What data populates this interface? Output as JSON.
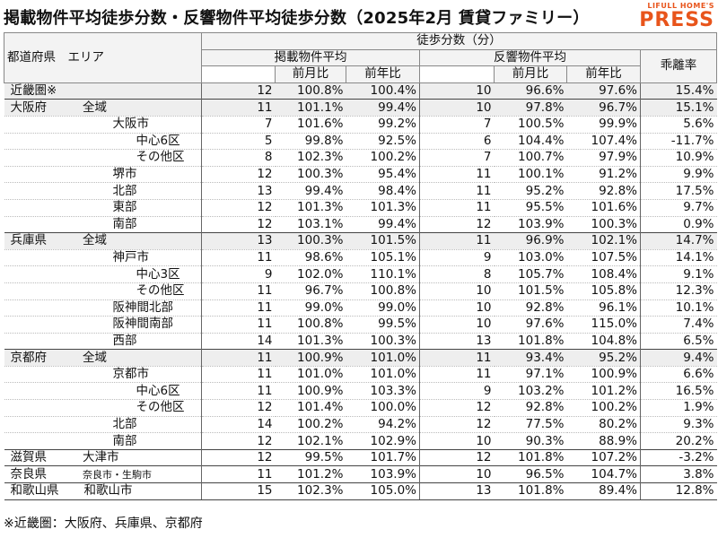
{
  "title": "掲載物件平均徒歩分数・反響物件平均徒歩分数（2025年2月 賃貸ファミリー）",
  "logo": {
    "top": "LIFULL HOME'S",
    "bottom": "PRESS",
    "color": "#e8541b"
  },
  "headers": {
    "region": "都道府県　エリア",
    "walk_minutes": "徒歩分数（分）",
    "listed_avg": "掲載物件平均",
    "response_avg": "反響物件平均",
    "mom": "前月比",
    "yoy": "前年比",
    "divergence": "乖離率"
  },
  "rows": [
    {
      "pref": "近畿圏※",
      "area": "",
      "indent": 0,
      "listed": "12",
      "l_mom": "100.8%",
      "l_yoy": "100.4%",
      "resp": "10",
      "r_mom": "96.6%",
      "r_yoy": "97.6%",
      "div": "15.4%",
      "shade": true,
      "group": true
    },
    {
      "pref": "大阪府",
      "area": "全域",
      "indent": 0,
      "listed": "11",
      "l_mom": "101.1%",
      "l_yoy": "99.4%",
      "resp": "10",
      "r_mom": "97.8%",
      "r_yoy": "96.7%",
      "div": "15.1%",
      "shade": true,
      "group": true
    },
    {
      "pref": "",
      "area": "大阪市",
      "indent": 1,
      "listed": "7",
      "l_mom": "101.6%",
      "l_yoy": "99.2%",
      "resp": "7",
      "r_mom": "100.5%",
      "r_yoy": "99.9%",
      "div": "5.6%"
    },
    {
      "pref": "",
      "area": "中心6区",
      "indent": 2,
      "listed": "5",
      "l_mom": "99.8%",
      "l_yoy": "92.5%",
      "resp": "6",
      "r_mom": "104.4%",
      "r_yoy": "107.4%",
      "div": "-11.7%"
    },
    {
      "pref": "",
      "area": "その他区",
      "indent": 2,
      "listed": "8",
      "l_mom": "102.3%",
      "l_yoy": "100.2%",
      "resp": "7",
      "r_mom": "100.7%",
      "r_yoy": "97.9%",
      "div": "10.9%"
    },
    {
      "pref": "",
      "area": "堺市",
      "indent": 1,
      "listed": "12",
      "l_mom": "100.3%",
      "l_yoy": "95.4%",
      "resp": "11",
      "r_mom": "100.1%",
      "r_yoy": "91.2%",
      "div": "9.9%"
    },
    {
      "pref": "",
      "area": "北部",
      "indent": 1,
      "listed": "13",
      "l_mom": "99.4%",
      "l_yoy": "98.4%",
      "resp": "11",
      "r_mom": "95.2%",
      "r_yoy": "92.8%",
      "div": "17.5%"
    },
    {
      "pref": "",
      "area": "東部",
      "indent": 1,
      "listed": "12",
      "l_mom": "101.3%",
      "l_yoy": "101.3%",
      "resp": "11",
      "r_mom": "95.5%",
      "r_yoy": "101.6%",
      "div": "9.7%"
    },
    {
      "pref": "",
      "area": "南部",
      "indent": 1,
      "listed": "12",
      "l_mom": "103.1%",
      "l_yoy": "99.4%",
      "resp": "12",
      "r_mom": "103.9%",
      "r_yoy": "100.3%",
      "div": "0.9%"
    },
    {
      "pref": "兵庫県",
      "area": "全域",
      "indent": 0,
      "listed": "13",
      "l_mom": "100.3%",
      "l_yoy": "101.5%",
      "resp": "11",
      "r_mom": "96.9%",
      "r_yoy": "102.1%",
      "div": "14.7%",
      "shade": true,
      "group": true
    },
    {
      "pref": "",
      "area": "神戸市",
      "indent": 1,
      "listed": "11",
      "l_mom": "98.6%",
      "l_yoy": "105.1%",
      "resp": "9",
      "r_mom": "103.0%",
      "r_yoy": "107.5%",
      "div": "14.1%"
    },
    {
      "pref": "",
      "area": "中心3区",
      "indent": 2,
      "listed": "9",
      "l_mom": "102.0%",
      "l_yoy": "110.1%",
      "resp": "8",
      "r_mom": "105.7%",
      "r_yoy": "108.4%",
      "div": "9.1%"
    },
    {
      "pref": "",
      "area": "その他区",
      "indent": 2,
      "listed": "11",
      "l_mom": "96.7%",
      "l_yoy": "100.8%",
      "resp": "10",
      "r_mom": "101.5%",
      "r_yoy": "105.8%",
      "div": "12.3%"
    },
    {
      "pref": "",
      "area": "阪神間北部",
      "indent": 1,
      "listed": "11",
      "l_mom": "99.0%",
      "l_yoy": "99.0%",
      "resp": "10",
      "r_mom": "92.8%",
      "r_yoy": "96.1%",
      "div": "10.1%"
    },
    {
      "pref": "",
      "area": "阪神間南部",
      "indent": 1,
      "listed": "11",
      "l_mom": "100.8%",
      "l_yoy": "99.5%",
      "resp": "10",
      "r_mom": "97.6%",
      "r_yoy": "115.0%",
      "div": "7.4%"
    },
    {
      "pref": "",
      "area": "西部",
      "indent": 1,
      "listed": "14",
      "l_mom": "101.3%",
      "l_yoy": "100.3%",
      "resp": "13",
      "r_mom": "101.8%",
      "r_yoy": "104.8%",
      "div": "6.5%"
    },
    {
      "pref": "京都府",
      "area": "全域",
      "indent": 0,
      "listed": "11",
      "l_mom": "100.9%",
      "l_yoy": "101.0%",
      "resp": "11",
      "r_mom": "93.4%",
      "r_yoy": "95.2%",
      "div": "9.4%",
      "shade": true,
      "group": true
    },
    {
      "pref": "",
      "area": "京都市",
      "indent": 1,
      "listed": "11",
      "l_mom": "101.0%",
      "l_yoy": "101.0%",
      "resp": "11",
      "r_mom": "97.1%",
      "r_yoy": "100.9%",
      "div": "6.6%"
    },
    {
      "pref": "",
      "area": "中心6区",
      "indent": 2,
      "listed": "11",
      "l_mom": "100.9%",
      "l_yoy": "103.3%",
      "resp": "9",
      "r_mom": "103.2%",
      "r_yoy": "101.2%",
      "div": "16.5%"
    },
    {
      "pref": "",
      "area": "その他区",
      "indent": 2,
      "listed": "12",
      "l_mom": "101.4%",
      "l_yoy": "100.0%",
      "resp": "12",
      "r_mom": "92.8%",
      "r_yoy": "100.2%",
      "div": "1.9%"
    },
    {
      "pref": "",
      "area": "北部",
      "indent": 1,
      "listed": "14",
      "l_mom": "100.2%",
      "l_yoy": "94.2%",
      "resp": "12",
      "r_mom": "77.5%",
      "r_yoy": "80.2%",
      "div": "9.3%"
    },
    {
      "pref": "",
      "area": "南部",
      "indent": 1,
      "listed": "12",
      "l_mom": "102.1%",
      "l_yoy": "102.9%",
      "resp": "10",
      "r_mom": "90.3%",
      "r_yoy": "88.9%",
      "div": "20.2%"
    },
    {
      "pref": "滋賀県",
      "area": "大津市",
      "indent": 3,
      "listed": "12",
      "l_mom": "99.5%",
      "l_yoy": "101.7%",
      "resp": "12",
      "r_mom": "101.8%",
      "r_yoy": "107.2%",
      "div": "-3.2%",
      "group": true
    },
    {
      "pref": "奈良県",
      "area": "奈良市・生駒市",
      "indent": 3,
      "small": true,
      "listed": "11",
      "l_mom": "101.2%",
      "l_yoy": "103.9%",
      "resp": "10",
      "r_mom": "96.5%",
      "r_yoy": "104.7%",
      "div": "3.8%",
      "group": true
    },
    {
      "pref": "和歌山県",
      "area": "和歌山市",
      "indent": 3,
      "listed": "15",
      "l_mom": "102.3%",
      "l_yoy": "105.0%",
      "resp": "13",
      "r_mom": "101.8%",
      "r_yoy": "89.4%",
      "div": "12.8%",
      "group": true,
      "last": true
    }
  ],
  "footnote": "※近畿圏：大阪府、兵庫県、京都府"
}
